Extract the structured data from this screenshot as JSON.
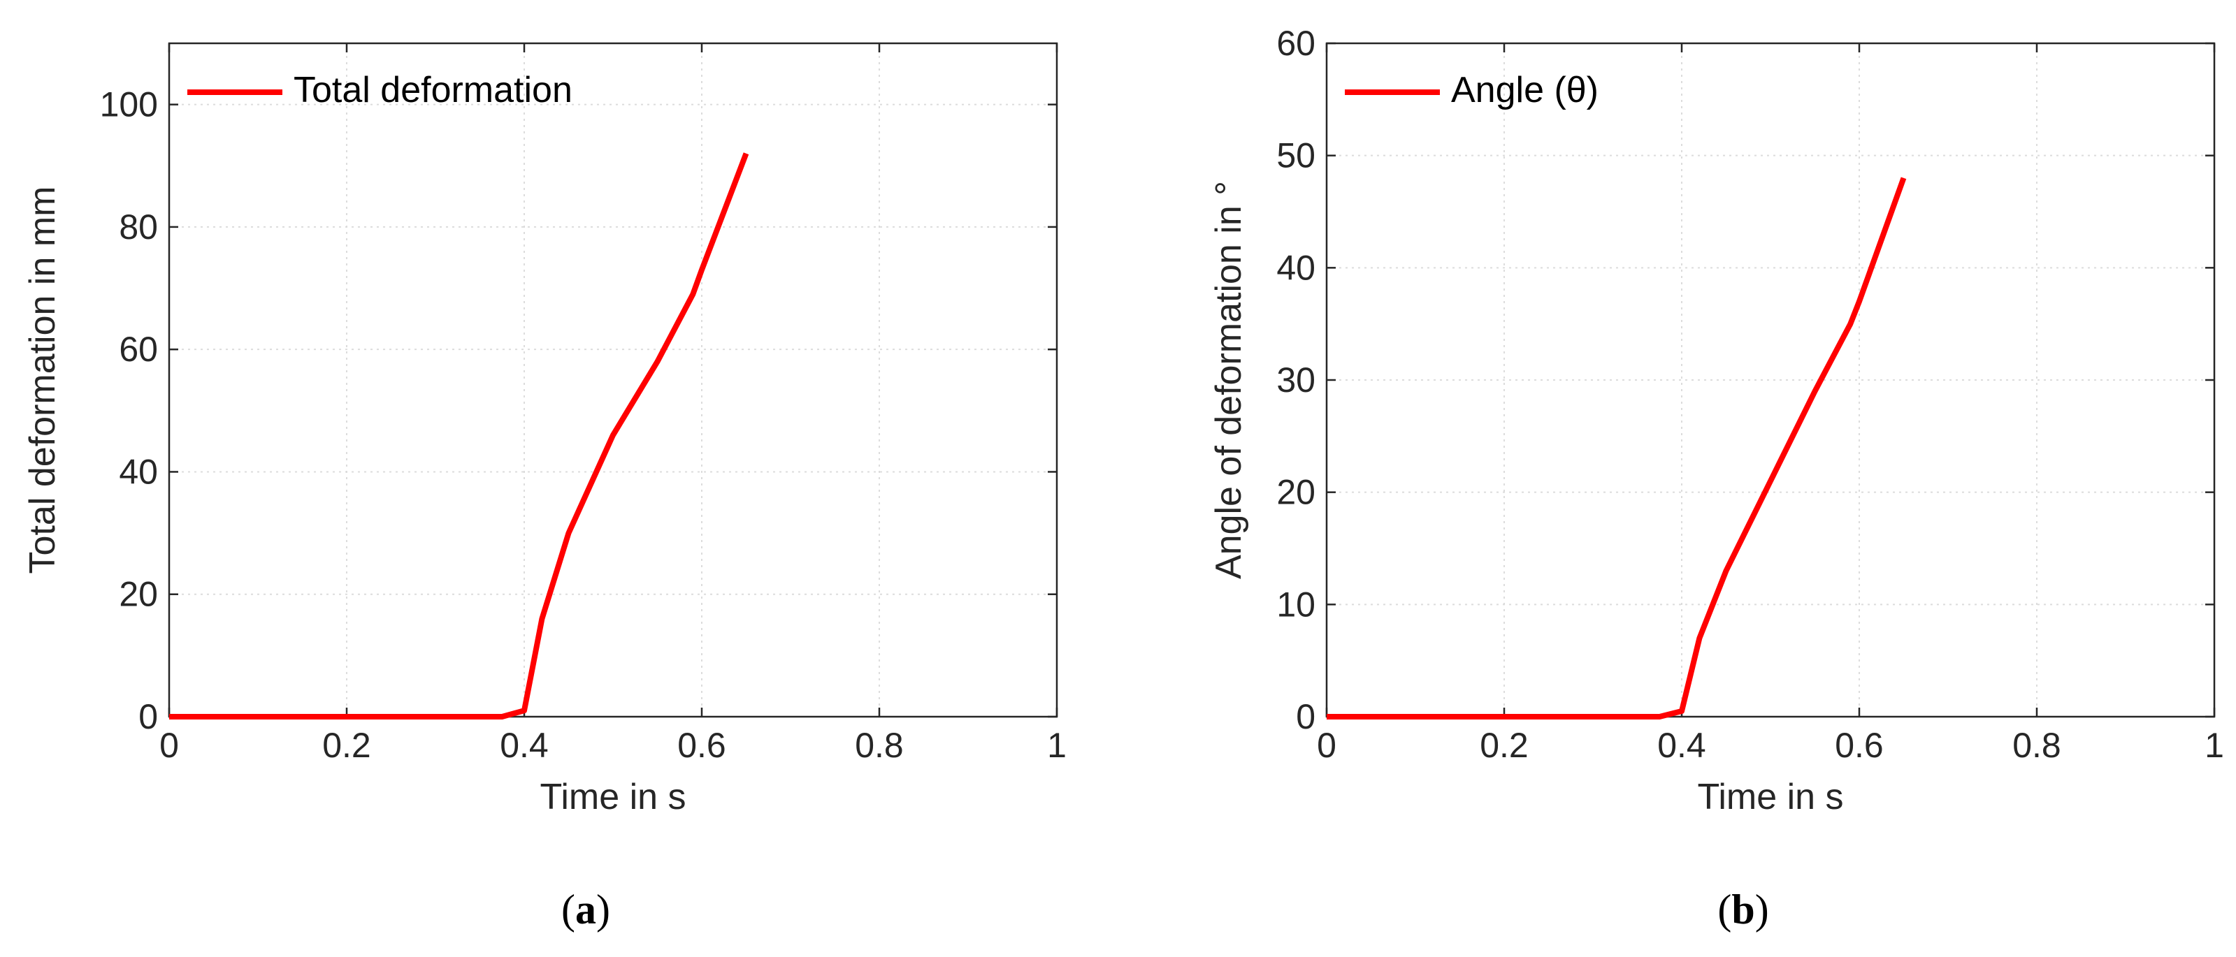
{
  "chart_data": [
    {
      "type": "line",
      "panel_label": "a",
      "xlabel": "Time in s",
      "ylabel": "Total deformation in mm",
      "xlim": [
        0,
        1
      ],
      "ylim": [
        0,
        110
      ],
      "xticks": [
        0,
        0.2,
        0.4,
        0.6,
        0.8,
        1
      ],
      "xtick_labels": [
        "0",
        "0.2",
        "0.4",
        "0.6",
        "0.8",
        "1"
      ],
      "yticks": [
        0,
        20,
        40,
        60,
        80,
        100
      ],
      "ytick_labels": [
        "0",
        "20",
        "40",
        "60",
        "80",
        "100"
      ],
      "grid": true,
      "legend_position": "top-left",
      "series": [
        {
          "name": "Total deformation",
          "color": "#ff0000",
          "x": [
            0,
            0.1,
            0.2,
            0.3,
            0.375,
            0.4,
            0.42,
            0.45,
            0.5,
            0.55,
            0.59,
            0.6,
            0.65
          ],
          "y": [
            0,
            0,
            0,
            0,
            0,
            1,
            16,
            30,
            46,
            58,
            69,
            73,
            92
          ]
        }
      ]
    },
    {
      "type": "line",
      "panel_label": "b",
      "xlabel": "Time in s",
      "ylabel": "Angle of deformation in °",
      "xlim": [
        0,
        1
      ],
      "ylim": [
        0,
        60
      ],
      "xticks": [
        0,
        0.2,
        0.4,
        0.6,
        0.8,
        1
      ],
      "xtick_labels": [
        "0",
        "0.2",
        "0.4",
        "0.6",
        "0.8",
        "1"
      ],
      "yticks": [
        0,
        10,
        20,
        30,
        40,
        50,
        60
      ],
      "ytick_labels": [
        "0",
        "10",
        "20",
        "30",
        "40",
        "50",
        "60"
      ],
      "grid": true,
      "legend_position": "top-left",
      "series": [
        {
          "name": "Angle (θ)",
          "color": "#ff0000",
          "x": [
            0,
            0.1,
            0.2,
            0.3,
            0.375,
            0.4,
            0.42,
            0.45,
            0.5,
            0.55,
            0.59,
            0.6,
            0.65
          ],
          "y": [
            0,
            0,
            0,
            0,
            0,
            0.5,
            7,
            13,
            21,
            29,
            35,
            37,
            48
          ]
        }
      ]
    }
  ]
}
